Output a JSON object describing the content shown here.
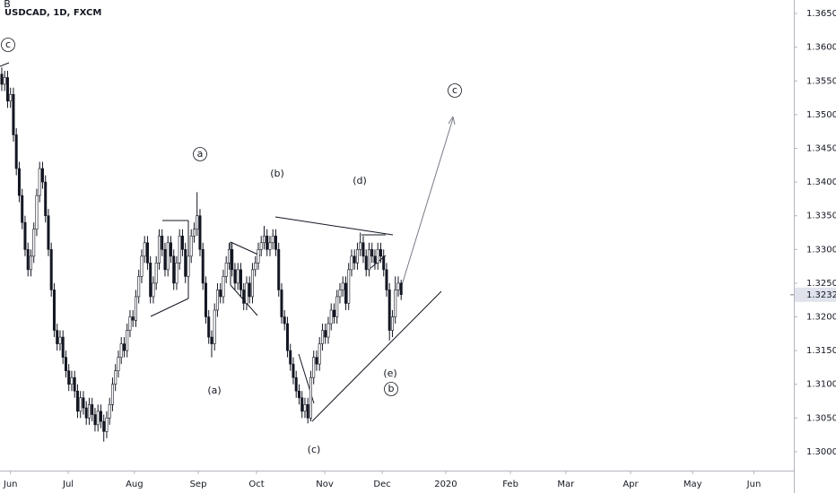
{
  "chart_data": {
    "type": "candlestick",
    "title": "USDCAD, 1D, FXCM",
    "up_color": "#ffffff",
    "down_color": "#131722",
    "open": [
      1.356,
      1.3545,
      1.3555,
      1.352,
      1.353,
      1.347,
      1.342,
      1.338,
      1.334,
      1.33,
      1.327,
      1.329,
      1.333,
      1.338,
      1.342,
      1.34,
      1.335,
      1.33,
      1.324,
      1.318,
      1.316,
      1.317,
      1.314,
      1.312,
      1.31,
      1.311,
      1.309,
      1.306,
      1.308,
      1.3065,
      1.305,
      1.307,
      1.3055,
      1.304,
      1.306,
      1.3045,
      1.303,
      1.305,
      1.307,
      1.31,
      1.312,
      1.314,
      1.316,
      1.315,
      1.318,
      1.32,
      1.3195,
      1.323,
      1.326,
      1.329,
      1.331,
      1.328,
      1.323,
      1.325,
      1.328,
      1.332,
      1.33,
      1.327,
      1.331,
      1.329,
      1.325,
      1.328,
      1.332,
      1.33,
      1.326,
      1.329,
      1.332,
      1.333,
      1.335,
      1.33,
      1.325,
      1.32,
      1.317,
      1.316,
      1.321,
      1.324,
      1.323,
      1.326,
      1.328,
      1.33,
      1.327,
      1.325,
      1.327,
      1.324,
      1.322,
      1.325,
      1.323,
      1.327,
      1.328,
      1.33,
      1.331,
      1.332,
      1.33,
      1.331,
      1.332,
      1.33,
      1.324,
      1.32,
      1.319,
      1.315,
      1.313,
      1.311,
      1.309,
      1.308,
      1.306,
      1.307,
      1.305,
      1.311,
      1.314,
      1.313,
      1.316,
      1.318,
      1.317,
      1.319,
      1.321,
      1.32,
      1.323,
      1.324,
      1.325,
      1.322,
      1.327,
      1.329,
      1.328,
      1.33,
      1.331,
      1.329,
      1.327,
      1.33,
      1.329,
      1.328,
      1.33,
      1.329,
      1.327,
      1.324,
      1.318,
      1.32,
      1.324,
      1.325
    ],
    "high": [
      1.357,
      1.3565,
      1.3565,
      1.354,
      1.354,
      1.348,
      1.343,
      1.339,
      1.335,
      1.331,
      1.33,
      1.334,
      1.339,
      1.343,
      1.343,
      1.341,
      1.336,
      1.331,
      1.325,
      1.319,
      1.318,
      1.318,
      1.315,
      1.313,
      1.312,
      1.312,
      1.31,
      1.309,
      1.309,
      1.3075,
      1.308,
      1.308,
      1.3065,
      1.307,
      1.307,
      1.3055,
      1.306,
      1.308,
      1.311,
      1.313,
      1.315,
      1.317,
      1.317,
      1.319,
      1.321,
      1.321,
      1.324,
      1.327,
      1.33,
      1.332,
      1.332,
      1.329,
      1.326,
      1.329,
      1.333,
      1.333,
      1.331,
      1.332,
      1.332,
      1.33,
      1.329,
      1.333,
      1.333,
      1.331,
      1.33,
      1.333,
      1.334,
      1.3385,
      1.336,
      1.331,
      1.326,
      1.321,
      1.318,
      1.322,
      1.325,
      1.325,
      1.327,
      1.329,
      1.331,
      1.331,
      1.328,
      1.328,
      1.328,
      1.325,
      1.326,
      1.326,
      1.328,
      1.329,
      1.331,
      1.332,
      1.3335,
      1.333,
      1.332,
      1.333,
      1.333,
      1.331,
      1.325,
      1.321,
      1.32,
      1.316,
      1.314,
      1.312,
      1.31,
      1.309,
      1.308,
      1.308,
      1.312,
      1.315,
      1.315,
      1.317,
      1.319,
      1.319,
      1.32,
      1.322,
      1.322,
      1.324,
      1.325,
      1.326,
      1.326,
      1.328,
      1.33,
      1.33,
      1.331,
      1.3325,
      1.332,
      1.33,
      1.331,
      1.331,
      1.33,
      1.331,
      1.331,
      1.33,
      1.328,
      1.325,
      1.321,
      1.326,
      1.326,
      1.3255
    ],
    "low": [
      1.3535,
      1.3535,
      1.351,
      1.351,
      1.346,
      1.341,
      1.337,
      1.333,
      1.329,
      1.326,
      1.326,
      1.328,
      1.332,
      1.337,
      1.339,
      1.334,
      1.329,
      1.323,
      1.317,
      1.315,
      1.315,
      1.313,
      1.311,
      1.309,
      1.309,
      1.308,
      1.305,
      1.305,
      1.3055,
      1.304,
      1.304,
      1.3045,
      1.303,
      1.303,
      1.3035,
      1.3015,
      1.302,
      1.304,
      1.306,
      1.309,
      1.311,
      1.313,
      1.314,
      1.314,
      1.317,
      1.3185,
      1.3185,
      1.322,
      1.325,
      1.328,
      1.327,
      1.322,
      1.322,
      1.324,
      1.327,
      1.329,
      1.326,
      1.326,
      1.328,
      1.324,
      1.324,
      1.327,
      1.329,
      1.325,
      1.325,
      1.328,
      1.331,
      1.332,
      1.329,
      1.324,
      1.319,
      1.316,
      1.314,
      1.315,
      1.32,
      1.322,
      1.322,
      1.325,
      1.327,
      1.326,
      1.324,
      1.324,
      1.323,
      1.321,
      1.321,
      1.322,
      1.322,
      1.326,
      1.327,
      1.329,
      1.33,
      1.329,
      1.329,
      1.33,
      1.329,
      1.323,
      1.319,
      1.318,
      1.314,
      1.312,
      1.31,
      1.308,
      1.307,
      1.305,
      1.305,
      1.3042,
      1.3045,
      1.31,
      1.312,
      1.312,
      1.315,
      1.316,
      1.316,
      1.318,
      1.319,
      1.319,
      1.322,
      1.323,
      1.321,
      1.321,
      1.326,
      1.327,
      1.327,
      1.329,
      1.328,
      1.326,
      1.326,
      1.328,
      1.327,
      1.327,
      1.328,
      1.326,
      1.323,
      1.3165,
      1.317,
      1.319,
      1.323,
      1.3225
    ],
    "close": [
      1.3545,
      1.3555,
      1.352,
      1.353,
      1.347,
      1.342,
      1.338,
      1.334,
      1.33,
      1.327,
      1.329,
      1.333,
      1.338,
      1.342,
      1.34,
      1.335,
      1.33,
      1.324,
      1.318,
      1.316,
      1.317,
      1.314,
      1.312,
      1.31,
      1.311,
      1.309,
      1.306,
      1.308,
      1.3065,
      1.305,
      1.307,
      1.3055,
      1.304,
      1.306,
      1.3045,
      1.303,
      1.305,
      1.307,
      1.31,
      1.312,
      1.314,
      1.316,
      1.315,
      1.318,
      1.32,
      1.3195,
      1.323,
      1.326,
      1.329,
      1.331,
      1.328,
      1.323,
      1.325,
      1.328,
      1.332,
      1.33,
      1.327,
      1.331,
      1.329,
      1.325,
      1.328,
      1.332,
      1.33,
      1.326,
      1.329,
      1.332,
      1.333,
      1.335,
      1.33,
      1.325,
      1.32,
      1.317,
      1.316,
      1.321,
      1.324,
      1.323,
      1.326,
      1.328,
      1.33,
      1.327,
      1.325,
      1.327,
      1.324,
      1.322,
      1.325,
      1.323,
      1.327,
      1.328,
      1.33,
      1.331,
      1.332,
      1.33,
      1.331,
      1.332,
      1.33,
      1.324,
      1.32,
      1.319,
      1.315,
      1.313,
      1.311,
      1.309,
      1.308,
      1.306,
      1.307,
      1.305,
      1.311,
      1.314,
      1.313,
      1.316,
      1.318,
      1.317,
      1.319,
      1.321,
      1.32,
      1.323,
      1.324,
      1.325,
      1.322,
      1.327,
      1.329,
      1.328,
      1.33,
      1.331,
      1.329,
      1.327,
      1.33,
      1.329,
      1.328,
      1.33,
      1.329,
      1.327,
      1.324,
      1.318,
      1.32,
      1.324,
      1.325,
      1.3233
    ],
    "last_price": 1.32328,
    "xlim": [
      -0.6,
      271.7
    ],
    "xticks": [
      {
        "value": 3,
        "label": "Jun"
      },
      {
        "value": 22.8,
        "label": "Jul"
      },
      {
        "value": 45.5,
        "label": "Aug"
      },
      {
        "value": 67.4,
        "label": "Sep"
      },
      {
        "value": 87.4,
        "label": "Oct"
      },
      {
        "value": 110.8,
        "label": "Nov"
      },
      {
        "value": 130.5,
        "label": "Dec"
      },
      {
        "value": 152.3,
        "label": "2020"
      },
      {
        "value": 174.5,
        "label": "Feb"
      },
      {
        "value": 193.5,
        "label": "Mar"
      },
      {
        "value": 215.7,
        "label": "Apr"
      },
      {
        "value": 237,
        "label": "May"
      },
      {
        "value": 258,
        "label": "Jun"
      }
    ],
    "ylim": [
      1.2972,
      1.367
    ],
    "yticks": [
      {
        "value": 1.3,
        "label": "1.30000"
      },
      {
        "value": 1.305,
        "label": "1.30500"
      },
      {
        "value": 1.31,
        "label": "1.31000"
      },
      {
        "value": 1.315,
        "label": "1.31500"
      },
      {
        "value": 1.32,
        "label": "1.32000"
      },
      {
        "value": 1.325,
        "label": "1.32500"
      },
      {
        "value": 1.33,
        "label": "1.33000"
      },
      {
        "value": 1.335,
        "label": "1.33500"
      },
      {
        "value": 1.34,
        "label": "1.34000"
      },
      {
        "value": 1.345,
        "label": "1.34500"
      },
      {
        "value": 1.35,
        "label": "1.35000"
      },
      {
        "value": 1.355,
        "label": "1.35500"
      },
      {
        "value": 1.36,
        "label": "1.36000"
      },
      {
        "value": 1.365,
        "label": "1.36500"
      }
    ],
    "annotations": [
      {
        "text": "B",
        "circled": false
      },
      {
        "text": "c",
        "circled": true
      },
      {
        "text": "a",
        "circled": true
      },
      {
        "text": "c",
        "circled": true
      },
      {
        "text": "b",
        "circled": true
      },
      {
        "text": "(b)",
        "circled": false
      },
      {
        "text": "(d)",
        "circled": false
      },
      {
        "text": "(a)",
        "circled": false
      },
      {
        "text": "(c)",
        "circled": false
      },
      {
        "text": "(e)",
        "circled": false
      }
    ]
  }
}
